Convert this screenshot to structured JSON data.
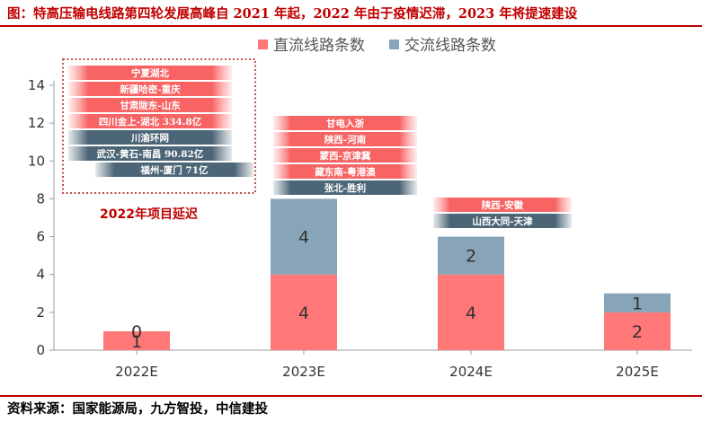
{
  "title": "图：特高压输电线路第四轮发展高峰自 2021 年起，2022 年由于疫情迟滞，2023 年将提速建设",
  "source": "资料来源：国家能源局，九方智投，中信建投",
  "colors": {
    "accent": "#c00000",
    "dc": "#ff7777",
    "ac": "#88a4b8"
  },
  "chart_data": {
    "type": "bar",
    "stacked": true,
    "categories": [
      "2022E",
      "2023E",
      "2024E",
      "2025E"
    ],
    "series": [
      {
        "name": "直流线路条数",
        "values": [
          1,
          4,
          4,
          2
        ],
        "color": "#ff7777"
      },
      {
        "name": "交流线路条数",
        "values": [
          0,
          4,
          2,
          1
        ],
        "color": "#88a4b8"
      }
    ],
    "ylim": [
      0,
      14
    ],
    "yticks": [
      0,
      2,
      4,
      6,
      8,
      10,
      12,
      14
    ],
    "legend_position": "top",
    "grid": false,
    "annotations": {
      "delay_label": "2022年项目延迟",
      "projects": [
        {
          "category": "2022E",
          "items": [
            {
              "text": "宁夏湖北",
              "type": "dc"
            },
            {
              "text": "新疆哈密-重庆",
              "type": "dc"
            },
            {
              "text": "甘肃陇东-山东",
              "type": "dc"
            },
            {
              "text": "四川金上-湖北 334.8亿",
              "type": "dc"
            },
            {
              "text": "川渝环网",
              "type": "ac"
            },
            {
              "text": "武汉-黄石-南昌 90.82亿",
              "type": "ac"
            },
            {
              "text": "福州-厦门 71亿",
              "type": "ac"
            }
          ]
        },
        {
          "category": "2023E",
          "items": [
            {
              "text": "甘电入浙",
              "type": "dc"
            },
            {
              "text": "陕西-河南",
              "type": "dc"
            },
            {
              "text": "蒙西-京津冀",
              "type": "dc"
            },
            {
              "text": "藏东南-粤港澳",
              "type": "dc"
            },
            {
              "text": "张北-胜利",
              "type": "ac"
            }
          ]
        },
        {
          "category": "2024E",
          "items": [
            {
              "text": "陕西-安徽",
              "type": "dc"
            },
            {
              "text": "山西大同-天津",
              "type": "ac"
            }
          ]
        }
      ]
    }
  }
}
